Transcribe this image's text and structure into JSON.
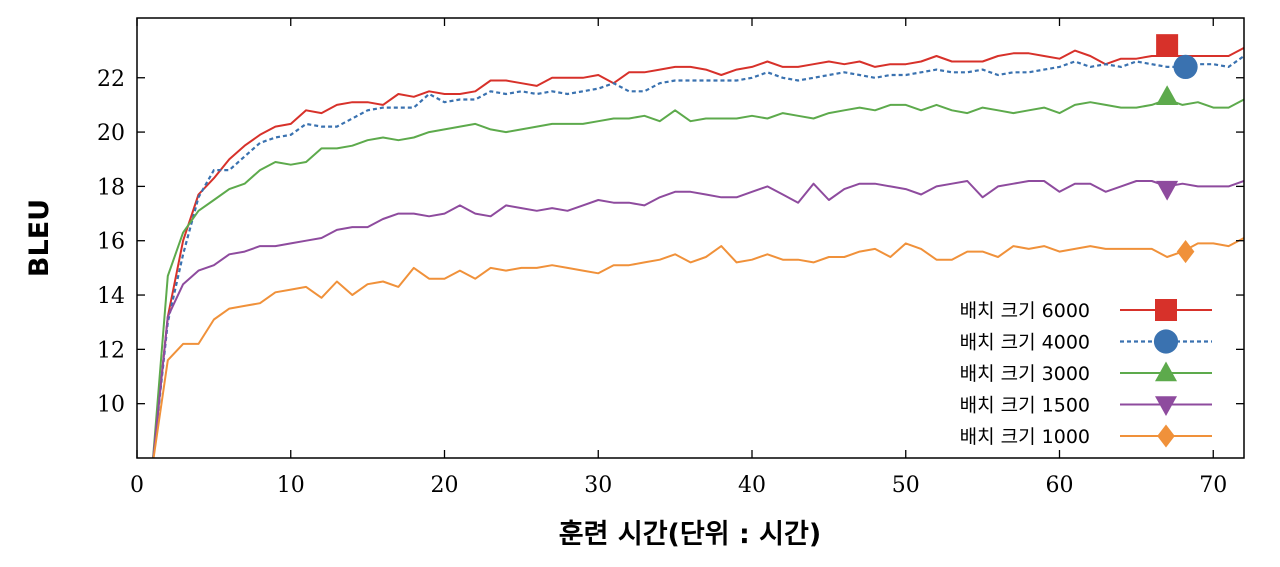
{
  "chart_data": {
    "type": "line",
    "xlabel": "훈련 시간(단위 : 시간)",
    "ylabel": "BLEU",
    "xlim": [
      0,
      72
    ],
    "ylim": [
      8,
      24.2
    ],
    "xticks": [
      0,
      10,
      20,
      30,
      40,
      50,
      60,
      70
    ],
    "yticks": [
      10,
      12,
      14,
      16,
      18,
      20,
      22
    ],
    "grid": false,
    "legend_position": "bottom-right",
    "x": [
      1,
      2,
      3,
      4,
      5,
      6,
      7,
      8,
      9,
      10,
      11,
      12,
      13,
      14,
      15,
      16,
      17,
      18,
      19,
      20,
      21,
      22,
      23,
      24,
      25,
      26,
      27,
      28,
      29,
      30,
      31,
      32,
      33,
      34,
      35,
      36,
      37,
      38,
      39,
      40,
      41,
      42,
      43,
      44,
      45,
      46,
      47,
      48,
      49,
      50,
      51,
      52,
      53,
      54,
      55,
      56,
      57,
      58,
      59,
      60,
      61,
      62,
      63,
      64,
      65,
      66,
      67,
      68,
      69,
      70,
      71,
      72
    ],
    "series": [
      {
        "name": "배치 크기 6000",
        "color": "#d7312a",
        "dash": "",
        "marker": "square",
        "marker_point": [
          67,
          23.2
        ],
        "values": [
          7.7,
          13.2,
          16.0,
          17.7,
          18.3,
          19.0,
          19.5,
          19.9,
          20.2,
          20.3,
          20.8,
          20.7,
          21.0,
          21.1,
          21.1,
          21.0,
          21.4,
          21.3,
          21.5,
          21.4,
          21.4,
          21.5,
          21.9,
          21.9,
          21.8,
          21.7,
          22.0,
          22.0,
          22.0,
          22.1,
          21.8,
          22.2,
          22.2,
          22.3,
          22.4,
          22.4,
          22.3,
          22.1,
          22.3,
          22.4,
          22.6,
          22.4,
          22.4,
          22.5,
          22.6,
          22.5,
          22.6,
          22.4,
          22.5,
          22.5,
          22.6,
          22.8,
          22.6,
          22.6,
          22.6,
          22.8,
          22.9,
          22.9,
          22.8,
          22.7,
          23.0,
          22.8,
          22.5,
          22.7,
          22.7,
          22.8,
          22.8,
          22.8,
          22.8,
          22.8,
          22.8,
          23.1
        ]
      },
      {
        "name": "배치 크기 4000",
        "color": "#3a72b0",
        "dash": "4,3",
        "marker": "circle",
        "marker_point": [
          68.2,
          22.4
        ],
        "values": [
          7.7,
          13.0,
          15.5,
          17.6,
          18.6,
          18.6,
          19.1,
          19.6,
          19.8,
          19.9,
          20.3,
          20.2,
          20.2,
          20.5,
          20.8,
          20.9,
          20.9,
          20.9,
          21.4,
          21.1,
          21.2,
          21.2,
          21.5,
          21.4,
          21.5,
          21.4,
          21.5,
          21.4,
          21.5,
          21.6,
          21.8,
          21.5,
          21.5,
          21.8,
          21.9,
          21.9,
          21.9,
          21.9,
          21.9,
          22.0,
          22.2,
          22.0,
          21.9,
          22.0,
          22.1,
          22.2,
          22.1,
          22.0,
          22.1,
          22.1,
          22.2,
          22.3,
          22.2,
          22.2,
          22.3,
          22.1,
          22.2,
          22.2,
          22.3,
          22.4,
          22.6,
          22.4,
          22.5,
          22.4,
          22.6,
          22.5,
          22.4,
          22.4,
          22.5,
          22.5,
          22.4,
          22.8
        ]
      },
      {
        "name": "배치 크기 3000",
        "color": "#5daa4c",
        "dash": "",
        "marker": "triangle-up",
        "marker_point": [
          67,
          21.3
        ],
        "values": [
          7.7,
          14.7,
          16.3,
          17.1,
          17.5,
          17.9,
          18.1,
          18.6,
          18.9,
          18.8,
          18.9,
          19.4,
          19.4,
          19.5,
          19.7,
          19.8,
          19.7,
          19.8,
          20.0,
          20.1,
          20.2,
          20.3,
          20.1,
          20.0,
          20.1,
          20.2,
          20.3,
          20.3,
          20.3,
          20.4,
          20.5,
          20.5,
          20.6,
          20.4,
          20.8,
          20.4,
          20.5,
          20.5,
          20.5,
          20.6,
          20.5,
          20.7,
          20.6,
          20.5,
          20.7,
          20.8,
          20.9,
          20.8,
          21.0,
          21.0,
          20.8,
          21.0,
          20.8,
          20.7,
          20.9,
          20.8,
          20.7,
          20.8,
          20.9,
          20.7,
          21.0,
          21.1,
          21.0,
          20.9,
          20.9,
          21.0,
          21.2,
          21.0,
          21.1,
          20.9,
          20.9,
          21.2
        ]
      },
      {
        "name": "배치 크기 1500",
        "color": "#8e4b9e",
        "dash": "",
        "marker": "triangle-down",
        "marker_point": [
          67,
          17.9
        ],
        "values": [
          7.7,
          13.2,
          14.4,
          14.9,
          15.1,
          15.5,
          15.6,
          15.8,
          15.8,
          15.9,
          16.0,
          16.1,
          16.4,
          16.5,
          16.5,
          16.8,
          17.0,
          17.0,
          16.9,
          17.0,
          17.3,
          17.0,
          16.9,
          17.3,
          17.2,
          17.1,
          17.2,
          17.1,
          17.3,
          17.5,
          17.4,
          17.4,
          17.3,
          17.6,
          17.8,
          17.8,
          17.7,
          17.6,
          17.6,
          17.8,
          18.0,
          17.7,
          17.4,
          18.1,
          17.5,
          17.9,
          18.1,
          18.1,
          18.0,
          17.9,
          17.7,
          18.0,
          18.1,
          18.2,
          17.6,
          18.0,
          18.1,
          18.2,
          18.2,
          17.8,
          18.1,
          18.1,
          17.8,
          18.0,
          18.2,
          18.2,
          18.0,
          18.1,
          18.0,
          18.0,
          18.0,
          18.2
        ]
      },
      {
        "name": "배치 크기 1000",
        "color": "#f0913a",
        "dash": "",
        "marker": "diamond",
        "marker_point": [
          68.2,
          15.6
        ],
        "values": [
          7.7,
          11.6,
          12.2,
          12.2,
          13.1,
          13.5,
          13.6,
          13.7,
          14.1,
          14.2,
          14.3,
          13.9,
          14.5,
          14.0,
          14.4,
          14.5,
          14.3,
          15.0,
          14.6,
          14.6,
          14.9,
          14.6,
          15.0,
          14.9,
          15.0,
          15.0,
          15.1,
          15.0,
          14.9,
          14.8,
          15.1,
          15.1,
          15.2,
          15.3,
          15.5,
          15.2,
          15.4,
          15.8,
          15.2,
          15.3,
          15.5,
          15.3,
          15.3,
          15.2,
          15.4,
          15.4,
          15.6,
          15.7,
          15.4,
          15.9,
          15.7,
          15.3,
          15.3,
          15.6,
          15.6,
          15.4,
          15.8,
          15.7,
          15.8,
          15.6,
          15.7,
          15.8,
          15.7,
          15.7,
          15.7,
          15.7,
          15.4,
          15.6,
          15.9,
          15.9,
          15.8,
          16.1
        ]
      }
    ]
  }
}
